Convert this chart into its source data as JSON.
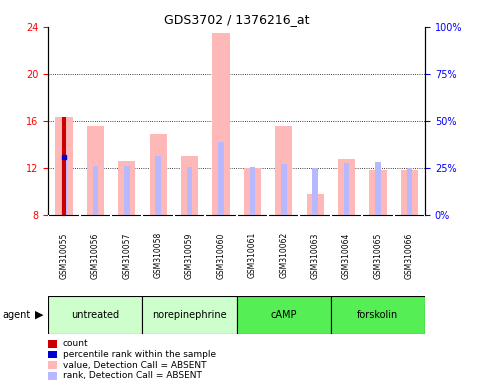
{
  "title": "GDS3702 / 1376216_at",
  "samples": [
    "GSM310055",
    "GSM310056",
    "GSM310057",
    "GSM310058",
    "GSM310059",
    "GSM310060",
    "GSM310061",
    "GSM310062",
    "GSM310063",
    "GSM310064",
    "GSM310065",
    "GSM310066"
  ],
  "value_bars": [
    16.3,
    15.6,
    12.6,
    14.9,
    13.0,
    23.5,
    12.0,
    15.6,
    9.8,
    12.8,
    11.8,
    11.8
  ],
  "rank_bars": [
    12.8,
    12.2,
    12.2,
    13.0,
    12.1,
    14.2,
    12.1,
    12.3,
    12.0,
    12.4,
    12.5,
    12.0
  ],
  "count_bar_sample": 0,
  "count_bar_value": 16.3,
  "percentile_sample": 0,
  "percentile_value": 12.9,
  "ylim_left": [
    8,
    24
  ],
  "ylim_right": [
    0,
    100
  ],
  "yticks_left": [
    8,
    12,
    16,
    20,
    24
  ],
  "yticks_right": [
    0,
    25,
    50,
    75,
    100
  ],
  "yticklabels_right": [
    "0%",
    "25%",
    "50%",
    "75%",
    "100%"
  ],
  "dotted_lines": [
    12,
    16,
    20
  ],
  "color_value_bar": "#ffb8b8",
  "color_rank_bar": "#b8b8ff",
  "color_count": "#cc0000",
  "color_percentile": "#0000cc",
  "value_bar_width": 0.55,
  "rank_bar_width": 0.18,
  "count_bar_width": 0.12,
  "bar_bottom": 8,
  "group_labels": [
    "untreated",
    "norepinephrine",
    "cAMP",
    "forskolin"
  ],
  "group_starts": [
    0,
    3,
    6,
    9
  ],
  "group_sizes": [
    3,
    3,
    3,
    3
  ],
  "group_colors": [
    "#ccffcc",
    "#ccffcc",
    "#55ee55",
    "#55ee55"
  ],
  "sample_cell_color": "#d0d0d0",
  "legend_items": [
    {
      "color": "#cc0000",
      "label": "count"
    },
    {
      "color": "#0000cc",
      "label": "percentile rank within the sample"
    },
    {
      "color": "#ffb8b8",
      "label": "value, Detection Call = ABSENT"
    },
    {
      "color": "#b8b8ff",
      "label": "rank, Detection Call = ABSENT"
    }
  ]
}
